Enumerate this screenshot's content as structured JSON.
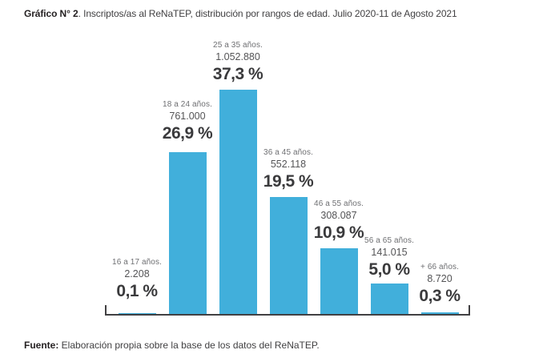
{
  "title": {
    "prefix": "Gráfico N° 2",
    "rest": ". Inscriptos/as al ReNaTEP, distribución por rangos de edad. Julio 2020-11 de Agosto 2021"
  },
  "source": {
    "prefix": "Fuente:",
    "rest": " Elaboración propia sobre la base de los datos del ReNaTEP."
  },
  "chart_data": {
    "type": "bar",
    "title": "Inscriptos/as al ReNaTEP, distribución por rangos de edad. Julio 2020-11 de Agosto 2021",
    "categories": [
      "16 a 17 años.",
      "18 a 24 años.",
      "25 a 35 años.",
      "36 a 45 años.",
      "46 a 55 años.",
      "56 a 65 años.",
      "+ 66 años."
    ],
    "counts": [
      "2.208",
      "761.000",
      "1.052.880",
      "552.118",
      "308.087",
      "141.015",
      "8.720"
    ],
    "values": [
      0.1,
      26.9,
      37.3,
      19.5,
      10.9,
      5.0,
      0.3
    ],
    "value_labels": [
      "0,1 %",
      "26,9 %",
      "37,3 %",
      "19,5 %",
      "10,9 %",
      "5,0 %",
      "0,3 %"
    ],
    "xlabel": "",
    "ylabel": "",
    "ylim": [
      0,
      40
    ],
    "grid": false,
    "legend": false,
    "bar_color": "#41AFDB",
    "axis_color": "#414042",
    "percent_label_color": "#3A3A3C",
    "category_label_color": "#6E6F72",
    "count_label_color": "#545456"
  }
}
